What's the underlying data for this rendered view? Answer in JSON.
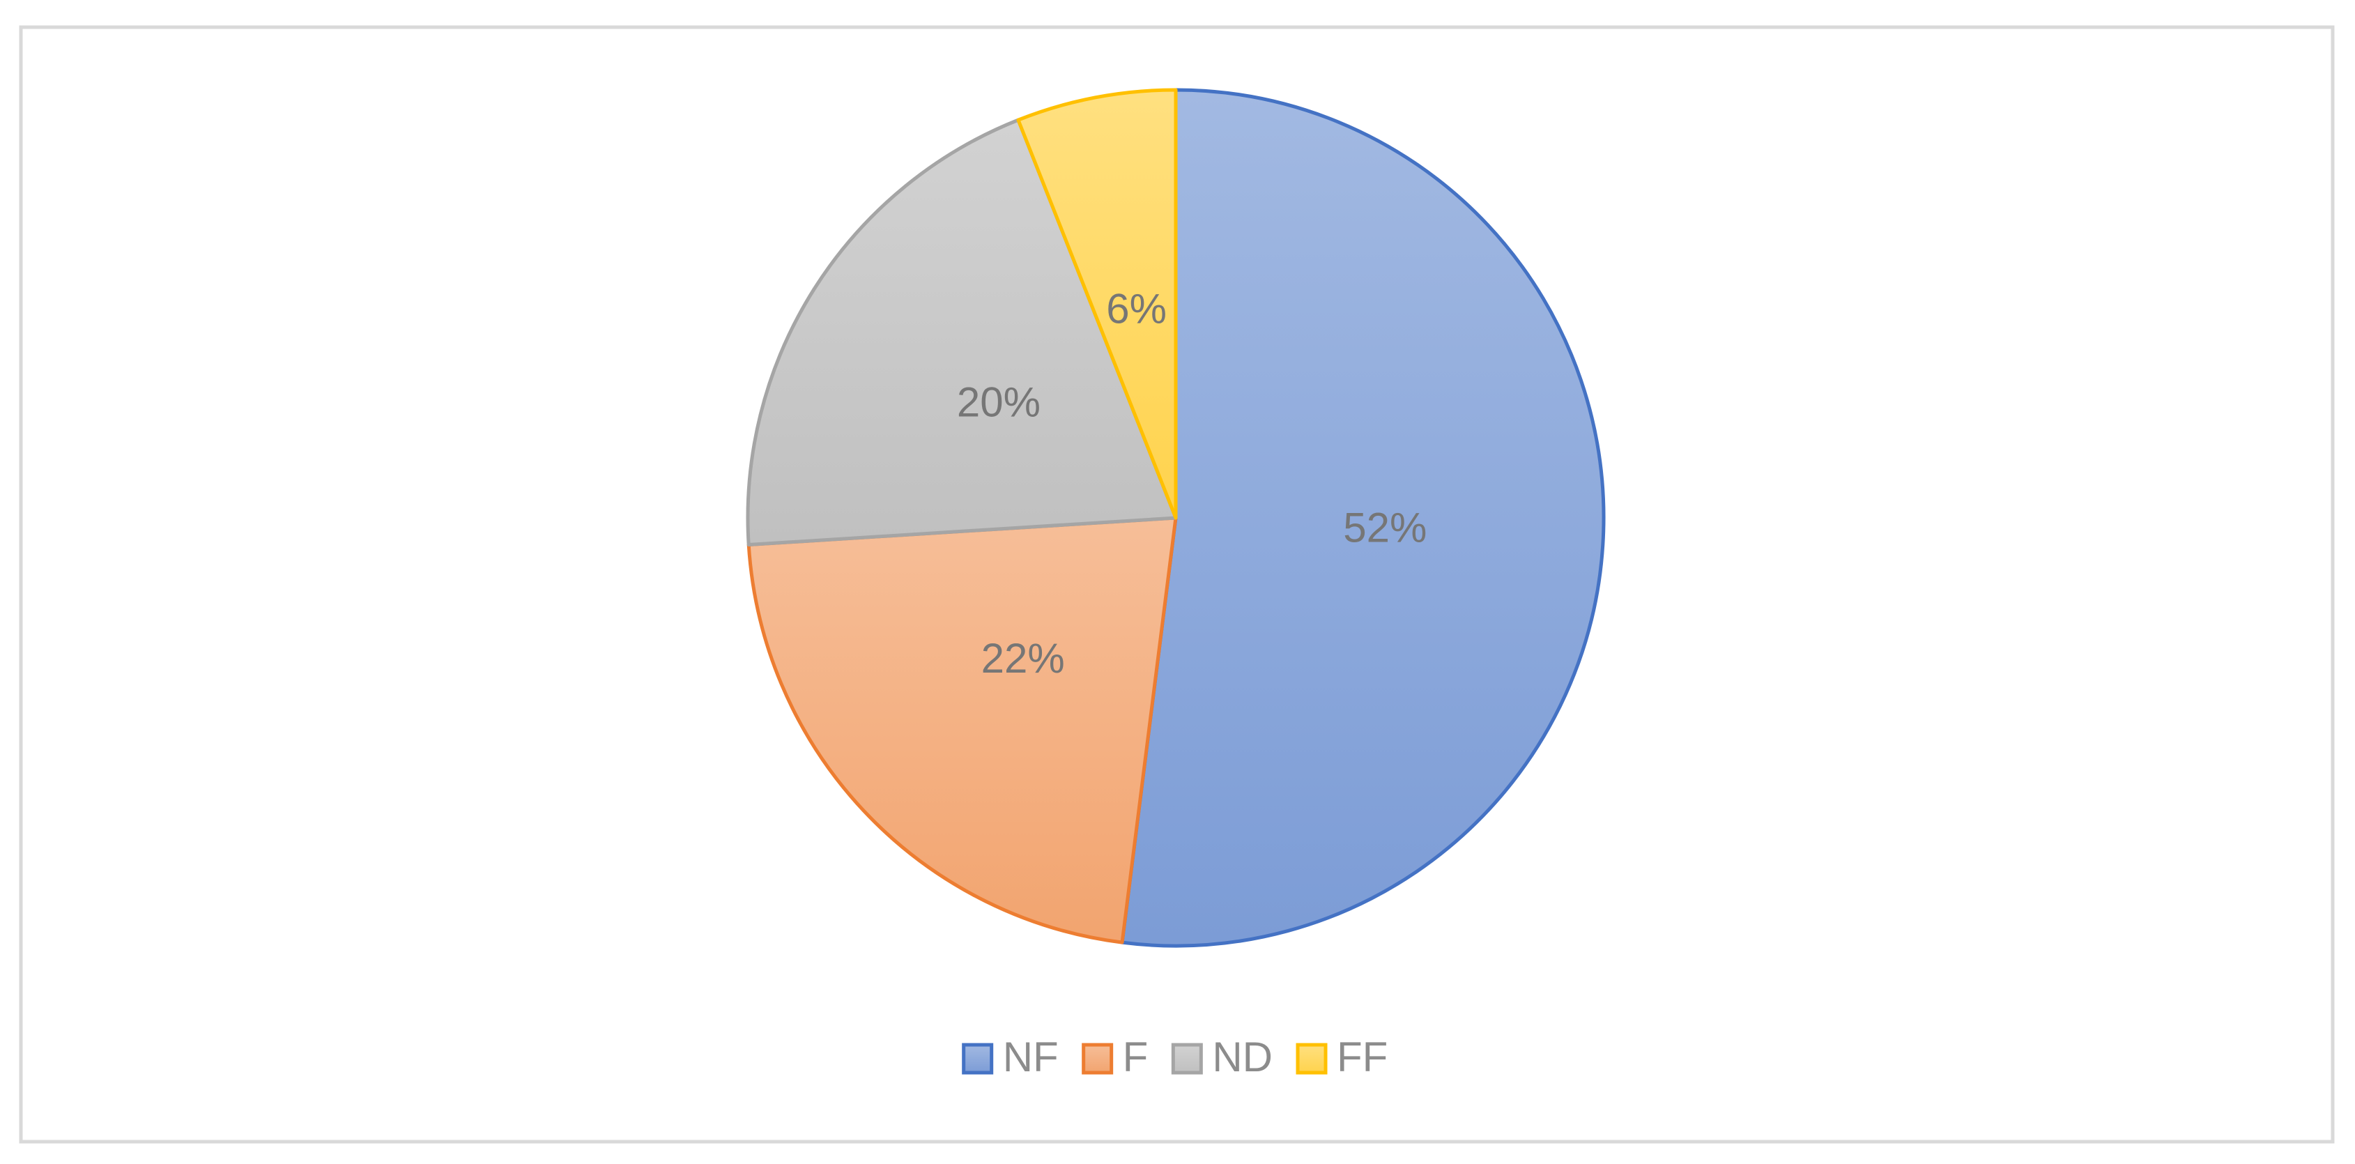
{
  "chart_data": {
    "type": "pie",
    "categories": [
      "NF",
      "F",
      "ND",
      "FF"
    ],
    "values": [
      52,
      22,
      20,
      6
    ],
    "value_labels": [
      "52%",
      "22%",
      "20%",
      "6%"
    ],
    "colors": [
      "#4472c4",
      "#ed7d31",
      "#a5a5a5",
      "#ffc000"
    ],
    "legend": "bottom"
  }
}
